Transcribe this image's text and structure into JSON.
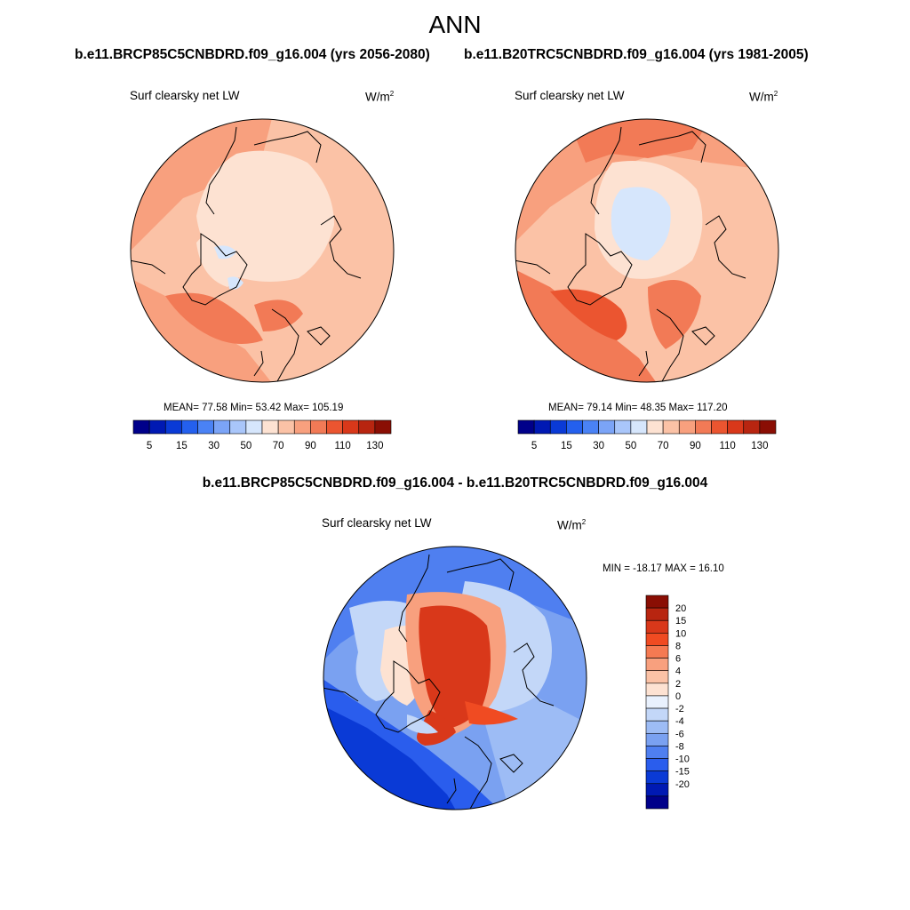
{
  "title": "ANN",
  "panels": [
    {
      "case_title": "b.e11.BRCP85C5CNBDRD.f09_g16.004 (yrs 2056-2080)",
      "variable": "Surf clearsky net LW",
      "units_base": "W/m",
      "units_exp": "2",
      "stats": "MEAN=  77.58  Min=  53.42  Max= 105.19",
      "mean": 77.58,
      "min": 53.42,
      "max": 105.19
    },
    {
      "case_title": "b.e11.B20TRC5CNBDRD.f09_g16.004 (yrs 1981-2005)",
      "variable": "Surf clearsky net LW",
      "units_base": "W/m",
      "units_exp": "2",
      "stats": "MEAN=  79.14  Min=  48.35  Max= 117.20",
      "mean": 79.14,
      "min": 48.35,
      "max": 117.2
    }
  ],
  "colorbar": {
    "colors": [
      "#00008a",
      "#0019b3",
      "#0a3ad6",
      "#2460ee",
      "#4a82f5",
      "#7ba4f7",
      "#a9c6fa",
      "#d6e6fc",
      "#fde2d2",
      "#fbc2a6",
      "#f8a07e",
      "#f27a56",
      "#eb5530",
      "#d9381a",
      "#b82510",
      "#8a0e04"
    ],
    "ticks": [
      "5",
      "15",
      "30",
      "50",
      "70",
      "90",
      "110",
      "130"
    ]
  },
  "difference": {
    "title": "b.e11.BRCP85C5CNBDRD.f09_g16.004 - b.e11.B20TRC5CNBDRD.f09_g16.004",
    "variable": "Surf clearsky net LW",
    "units_base": "W/m",
    "units_exp": "2",
    "stats": "MIN = -18.17 MAX =  16.10",
    "min": -18.17,
    "max": 16.1,
    "colorbar": {
      "colors": [
        "#8a0e04",
        "#b82510",
        "#d9381a",
        "#f04b22",
        "#f57a52",
        "#f8a07e",
        "#fbc2a6",
        "#fde2d2",
        "#e9f1fd",
        "#c3d7f8",
        "#9dbcf5",
        "#7aa1f1",
        "#4f7ff0",
        "#2a5ded",
        "#0a3ad6",
        "#0019b3",
        "#00008a"
      ],
      "labels": [
        "20",
        "15",
        "10",
        "8",
        "6",
        "4",
        "2",
        "0",
        "-2",
        "-4",
        "-6",
        "-8",
        "-10",
        "-15",
        "-20"
      ]
    }
  }
}
